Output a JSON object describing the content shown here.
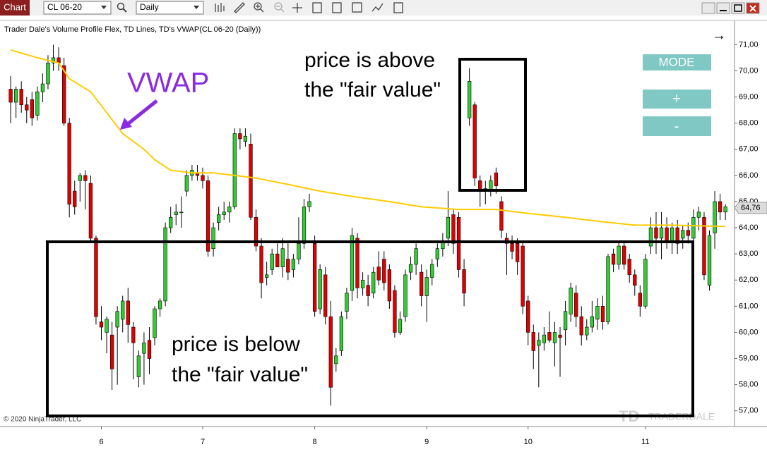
{
  "toolbar": {
    "tab": "Chart",
    "instrument": "CL 06-20",
    "interval": "Daily"
  },
  "buttons": [
    "MODE",
    "+",
    "-"
  ],
  "copyright": "© 2020 NinjaTrader, LLC",
  "watermark": "TRADERDALE",
  "chart_data": {
    "type": "candlestick",
    "title": "Trader Dale's Volume Profile Flex, TD Lines, TD's VWAP(CL 06-20 (Daily))",
    "vwap_label": "VWAP",
    "above_note": [
      "price is above",
      "the \"fair value\""
    ],
    "below_note": [
      "price is below",
      "the \"fair value\""
    ],
    "up_color": "#32cd32",
    "down_color": "#e00000",
    "xlim": [
      -2,
      135.7
    ],
    "xticks": [
      {
        "value": 17,
        "label": "6"
      },
      {
        "value": 36,
        "label": "7"
      },
      {
        "value": 57,
        "label": "8"
      },
      {
        "value": 78,
        "label": "9"
      },
      {
        "value": 97,
        "label": "10"
      },
      {
        "value": 119,
        "label": "11"
      }
    ],
    "ylim": [
      56.4,
      71.9
    ],
    "yticks": [
      {
        "value": 57,
        "label": "57,00"
      },
      {
        "value": 58,
        "label": "58,00"
      },
      {
        "value": 59,
        "label": "59,00"
      },
      {
        "value": 60,
        "label": "60,00"
      },
      {
        "value": 61,
        "label": "61,00"
      },
      {
        "value": 62,
        "label": "62,00"
      },
      {
        "value": 63,
        "label": "63,00"
      },
      {
        "value": 64,
        "label": "64,00"
      },
      {
        "value": 65,
        "label": "65,00"
      },
      {
        "value": 66,
        "label": "66,00"
      },
      {
        "value": 67,
        "label": "67,00"
      },
      {
        "value": 68,
        "label": "68,00"
      },
      {
        "value": 69,
        "label": "69,00"
      },
      {
        "value": 70,
        "label": "70,00"
      },
      {
        "value": 71,
        "label": "71,00"
      }
    ],
    "grid": false,
    "last_price": {
      "value": 64.76,
      "label": "64,76"
    },
    "vwap": {
      "color": "#ffcc00",
      "x": [
        0,
        5,
        9,
        11,
        15,
        18,
        21,
        25,
        27,
        30,
        34,
        38,
        42,
        46,
        51,
        58,
        64,
        71,
        77,
        84,
        91,
        97,
        104,
        110,
        117,
        124,
        134
      ],
      "values": [
        70.8,
        70.5,
        70.3,
        69.7,
        69.2,
        68.4,
        67.6,
        67.0,
        66.6,
        66.2,
        66.1,
        66.1,
        66.0,
        65.9,
        65.7,
        65.4,
        65.2,
        65.0,
        64.8,
        64.7,
        64.7,
        64.55,
        64.4,
        64.25,
        64.1,
        64.1,
        64.05
      ]
    },
    "candles": [
      {
        "o": 69.3,
        "h": 69.8,
        "l": 68.0,
        "c": 68.8
      },
      {
        "o": 68.8,
        "h": 69.4,
        "l": 68.2,
        "c": 69.3
      },
      {
        "o": 69.3,
        "h": 69.6,
        "l": 68.4,
        "c": 68.7
      },
      {
        "o": 68.7,
        "h": 69.0,
        "l": 68.0,
        "c": 68.5
      },
      {
        "o": 68.9,
        "h": 69.2,
        "l": 67.9,
        "c": 68.2
      },
      {
        "o": 68.3,
        "h": 69.4,
        "l": 68.1,
        "c": 69.2
      },
      {
        "o": 69.2,
        "h": 69.9,
        "l": 68.8,
        "c": 69.5
      },
      {
        "o": 69.5,
        "h": 70.6,
        "l": 69.3,
        "c": 70.3
      },
      {
        "o": 70.3,
        "h": 71.0,
        "l": 70.0,
        "c": 70.5
      },
      {
        "o": 70.5,
        "h": 70.9,
        "l": 70.0,
        "c": 70.3
      },
      {
        "o": 70.2,
        "h": 70.5,
        "l": 67.9,
        "c": 68.0
      },
      {
        "o": 68.0,
        "h": 68.2,
        "l": 64.4,
        "c": 64.9
      },
      {
        "o": 65.4,
        "h": 65.8,
        "l": 64.5,
        "c": 64.8
      },
      {
        "o": 65.8,
        "h": 66.1,
        "l": 65.0,
        "c": 66.0
      },
      {
        "o": 66.0,
        "h": 66.2,
        "l": 64.7,
        "c": 65.8
      },
      {
        "o": 65.7,
        "h": 66.0,
        "l": 63.5,
        "c": 63.6
      },
      {
        "o": 63.6,
        "h": 63.7,
        "l": 60.3,
        "c": 60.6
      },
      {
        "o": 60.4,
        "h": 61.0,
        "l": 59.7,
        "c": 60.2
      },
      {
        "o": 60.0,
        "h": 60.6,
        "l": 59.2,
        "c": 60.5
      },
      {
        "o": 59.9,
        "h": 60.4,
        "l": 57.8,
        "c": 58.6
      },
      {
        "o": 60.2,
        "h": 61.0,
        "l": 58.0,
        "c": 60.8
      },
      {
        "o": 60.5,
        "h": 61.4,
        "l": 60.0,
        "c": 61.2
      },
      {
        "o": 61.2,
        "h": 61.7,
        "l": 59.6,
        "c": 60.3
      },
      {
        "o": 60.2,
        "h": 60.4,
        "l": 58.2,
        "c": 59.6
      },
      {
        "o": 58.3,
        "h": 59.3,
        "l": 57.9,
        "c": 59.1
      },
      {
        "o": 59.2,
        "h": 60.0,
        "l": 58.0,
        "c": 59.6
      },
      {
        "o": 59.7,
        "h": 60.2,
        "l": 58.4,
        "c": 59.0
      },
      {
        "o": 59.8,
        "h": 61.0,
        "l": 59.5,
        "c": 60.9
      },
      {
        "o": 60.9,
        "h": 61.3,
        "l": 60.6,
        "c": 61.2
      },
      {
        "o": 61.2,
        "h": 64.2,
        "l": 61.0,
        "c": 64.0
      },
      {
        "o": 64.0,
        "h": 64.8,
        "l": 63.8,
        "c": 64.4
      },
      {
        "o": 64.5,
        "h": 64.9,
        "l": 64.1,
        "c": 64.6
      },
      {
        "o": 64.6,
        "h": 65.2,
        "l": 64.0,
        "c": 64.6
      },
      {
        "o": 65.4,
        "h": 66.2,
        "l": 65.2,
        "c": 66.0
      },
      {
        "o": 66.0,
        "h": 66.4,
        "l": 65.8,
        "c": 66.2
      },
      {
        "o": 66.1,
        "h": 66.4,
        "l": 65.8,
        "c": 66.0
      },
      {
        "o": 66.0,
        "h": 66.3,
        "l": 65.5,
        "c": 65.8
      },
      {
        "o": 65.8,
        "h": 66.0,
        "l": 62.9,
        "c": 63.1
      },
      {
        "o": 63.2,
        "h": 64.2,
        "l": 62.9,
        "c": 64.0
      },
      {
        "o": 64.2,
        "h": 64.8,
        "l": 63.9,
        "c": 64.5
      },
      {
        "o": 64.5,
        "h": 65.0,
        "l": 64.3,
        "c": 64.6
      },
      {
        "o": 64.6,
        "h": 65.0,
        "l": 64.2,
        "c": 64.8
      },
      {
        "o": 64.8,
        "h": 67.8,
        "l": 64.7,
        "c": 67.6
      },
      {
        "o": 67.6,
        "h": 67.8,
        "l": 67.0,
        "c": 67.4
      },
      {
        "o": 67.3,
        "h": 67.8,
        "l": 67.1,
        "c": 67.5
      },
      {
        "o": 67.2,
        "h": 67.6,
        "l": 64.3,
        "c": 64.4
      },
      {
        "o": 64.4,
        "h": 64.7,
        "l": 63.1,
        "c": 63.3
      },
      {
        "o": 63.3,
        "h": 63.6,
        "l": 61.3,
        "c": 61.9
      },
      {
        "o": 62.1,
        "h": 62.7,
        "l": 61.8,
        "c": 62.2
      },
      {
        "o": 62.4,
        "h": 63.2,
        "l": 62.2,
        "c": 63.0
      },
      {
        "o": 63.0,
        "h": 63.4,
        "l": 62.5,
        "c": 62.5
      },
      {
        "o": 62.5,
        "h": 63.6,
        "l": 62.1,
        "c": 63.2
      },
      {
        "o": 62.8,
        "h": 63.4,
        "l": 62.0,
        "c": 62.3
      },
      {
        "o": 62.4,
        "h": 63.0,
        "l": 62.1,
        "c": 62.8
      },
      {
        "o": 62.8,
        "h": 64.4,
        "l": 62.6,
        "c": 63.4
      },
      {
        "o": 63.4,
        "h": 65.1,
        "l": 63.2,
        "c": 64.8
      },
      {
        "o": 64.8,
        "h": 65.3,
        "l": 64.6,
        "c": 65.0
      },
      {
        "o": 63.4,
        "h": 63.7,
        "l": 60.6,
        "c": 60.8
      },
      {
        "o": 60.9,
        "h": 62.6,
        "l": 60.7,
        "c": 62.4
      },
      {
        "o": 62.2,
        "h": 62.5,
        "l": 60.3,
        "c": 60.6
      },
      {
        "o": 60.6,
        "h": 61.2,
        "l": 57.2,
        "c": 57.9
      },
      {
        "o": 58.8,
        "h": 59.4,
        "l": 58.5,
        "c": 59.1
      },
      {
        "o": 59.3,
        "h": 60.8,
        "l": 59.1,
        "c": 60.6
      },
      {
        "o": 60.8,
        "h": 61.7,
        "l": 60.5,
        "c": 61.5
      },
      {
        "o": 61.6,
        "h": 64.0,
        "l": 61.2,
        "c": 63.7
      },
      {
        "o": 63.6,
        "h": 63.8,
        "l": 61.3,
        "c": 61.7
      },
      {
        "o": 61.7,
        "h": 62.3,
        "l": 61.4,
        "c": 62.0
      },
      {
        "o": 61.8,
        "h": 62.2,
        "l": 61.0,
        "c": 61.4
      },
      {
        "o": 61.5,
        "h": 62.5,
        "l": 61.3,
        "c": 62.3
      },
      {
        "o": 62.5,
        "h": 63.1,
        "l": 61.8,
        "c": 62.0
      },
      {
        "o": 62.8,
        "h": 63.1,
        "l": 61.6,
        "c": 61.9
      },
      {
        "o": 62.4,
        "h": 62.6,
        "l": 60.9,
        "c": 61.2
      },
      {
        "o": 61.6,
        "h": 61.8,
        "l": 59.8,
        "c": 60.0
      },
      {
        "o": 60.0,
        "h": 60.8,
        "l": 59.9,
        "c": 60.5
      },
      {
        "o": 60.6,
        "h": 62.4,
        "l": 60.4,
        "c": 62.2
      },
      {
        "o": 62.3,
        "h": 62.9,
        "l": 62.0,
        "c": 62.6
      },
      {
        "o": 62.6,
        "h": 63.4,
        "l": 62.2,
        "c": 63.2
      },
      {
        "o": 62.3,
        "h": 62.6,
        "l": 61.0,
        "c": 61.4
      },
      {
        "o": 61.4,
        "h": 62.4,
        "l": 60.4,
        "c": 62.1
      },
      {
        "o": 62.1,
        "h": 62.8,
        "l": 61.8,
        "c": 62.6
      },
      {
        "o": 62.8,
        "h": 63.4,
        "l": 62.5,
        "c": 63.2
      },
      {
        "o": 63.2,
        "h": 63.8,
        "l": 62.9,
        "c": 63.5
      },
      {
        "o": 63.6,
        "h": 65.4,
        "l": 63.3,
        "c": 64.4
      },
      {
        "o": 64.5,
        "h": 64.7,
        "l": 63.0,
        "c": 63.4
      },
      {
        "o": 64.4,
        "h": 64.6,
        "l": 62.1,
        "c": 62.4
      },
      {
        "o": 62.4,
        "h": 62.8,
        "l": 61.0,
        "c": 61.5
      },
      {
        "o": 68.2,
        "h": 70.1,
        "l": 67.9,
        "c": 69.6
      },
      {
        "o": 68.7,
        "h": 68.8,
        "l": 65.6,
        "c": 65.9
      },
      {
        "o": 65.8,
        "h": 66.0,
        "l": 64.8,
        "c": 65.4
      },
      {
        "o": 65.4,
        "h": 65.8,
        "l": 64.9,
        "c": 65.5
      },
      {
        "o": 65.4,
        "h": 66.0,
        "l": 65.2,
        "c": 65.8
      },
      {
        "o": 66.1,
        "h": 66.3,
        "l": 65.3,
        "c": 65.6
      },
      {
        "o": 65.0,
        "h": 65.2,
        "l": 63.6,
        "c": 63.9
      },
      {
        "o": 63.6,
        "h": 63.8,
        "l": 62.2,
        "c": 63.4
      },
      {
        "o": 63.4,
        "h": 63.7,
        "l": 62.8,
        "c": 63.1
      },
      {
        "o": 63.4,
        "h": 63.6,
        "l": 62.2,
        "c": 62.7
      },
      {
        "o": 63.3,
        "h": 63.5,
        "l": 60.7,
        "c": 61.0
      },
      {
        "o": 61.2,
        "h": 61.4,
        "l": 59.5,
        "c": 60.0
      },
      {
        "o": 60.0,
        "h": 60.3,
        "l": 58.6,
        "c": 59.3
      },
      {
        "o": 59.5,
        "h": 60.0,
        "l": 57.9,
        "c": 59.7
      },
      {
        "o": 59.6,
        "h": 60.2,
        "l": 59.3,
        "c": 59.9
      },
      {
        "o": 60.0,
        "h": 60.8,
        "l": 59.6,
        "c": 59.7
      },
      {
        "o": 59.6,
        "h": 60.4,
        "l": 58.7,
        "c": 60.0
      },
      {
        "o": 59.9,
        "h": 60.2,
        "l": 58.3,
        "c": 59.8
      },
      {
        "o": 60.1,
        "h": 61.2,
        "l": 59.5,
        "c": 60.8
      },
      {
        "o": 60.7,
        "h": 61.9,
        "l": 60.4,
        "c": 61.7
      },
      {
        "o": 61.5,
        "h": 61.8,
        "l": 60.2,
        "c": 60.6
      },
      {
        "o": 60.6,
        "h": 61.0,
        "l": 59.5,
        "c": 59.9
      },
      {
        "o": 59.9,
        "h": 60.5,
        "l": 59.7,
        "c": 60.2
      },
      {
        "o": 60.2,
        "h": 61.2,
        "l": 60.0,
        "c": 60.6
      },
      {
        "o": 60.5,
        "h": 61.3,
        "l": 60.1,
        "c": 61.0
      },
      {
        "o": 61.0,
        "h": 61.4,
        "l": 60.1,
        "c": 60.4
      },
      {
        "o": 60.4,
        "h": 63.0,
        "l": 60.3,
        "c": 62.9
      },
      {
        "o": 63.0,
        "h": 63.2,
        "l": 62.3,
        "c": 62.6
      },
      {
        "o": 62.6,
        "h": 63.5,
        "l": 62.4,
        "c": 63.3
      },
      {
        "o": 63.3,
        "h": 63.5,
        "l": 62.4,
        "c": 62.6
      },
      {
        "o": 62.8,
        "h": 63.0,
        "l": 61.9,
        "c": 62.2
      },
      {
        "o": 62.2,
        "h": 62.4,
        "l": 61.4,
        "c": 61.8
      },
      {
        "o": 61.5,
        "h": 61.8,
        "l": 60.6,
        "c": 61.0
      },
      {
        "o": 61.0,
        "h": 63.0,
        "l": 60.9,
        "c": 62.8
      },
      {
        "o": 63.3,
        "h": 64.4,
        "l": 63.0,
        "c": 64.0
      },
      {
        "o": 64.0,
        "h": 64.6,
        "l": 63.0,
        "c": 63.6
      },
      {
        "o": 63.6,
        "h": 64.6,
        "l": 62.8,
        "c": 64.0
      },
      {
        "o": 64.0,
        "h": 64.4,
        "l": 63.2,
        "c": 63.5
      },
      {
        "o": 63.5,
        "h": 64.2,
        "l": 63.0,
        "c": 64.0
      },
      {
        "o": 64.0,
        "h": 64.3,
        "l": 63.0,
        "c": 63.4
      },
      {
        "o": 63.6,
        "h": 64.1,
        "l": 63.2,
        "c": 63.9
      },
      {
        "o": 63.9,
        "h": 64.2,
        "l": 63.4,
        "c": 63.7
      },
      {
        "o": 63.6,
        "h": 64.7,
        "l": 63.3,
        "c": 64.4
      },
      {
        "o": 64.4,
        "h": 64.8,
        "l": 63.9,
        "c": 64.6
      },
      {
        "o": 64.4,
        "h": 64.6,
        "l": 62.0,
        "c": 62.2
      },
      {
        "o": 61.8,
        "h": 63.9,
        "l": 61.6,
        "c": 63.7
      },
      {
        "o": 63.8,
        "h": 65.4,
        "l": 63.2,
        "c": 65.0
      },
      {
        "o": 65.0,
        "h": 65.3,
        "l": 64.3,
        "c": 64.6
      },
      {
        "o": 64.6,
        "h": 64.9,
        "l": 64.3,
        "c": 64.8
      }
    ]
  }
}
